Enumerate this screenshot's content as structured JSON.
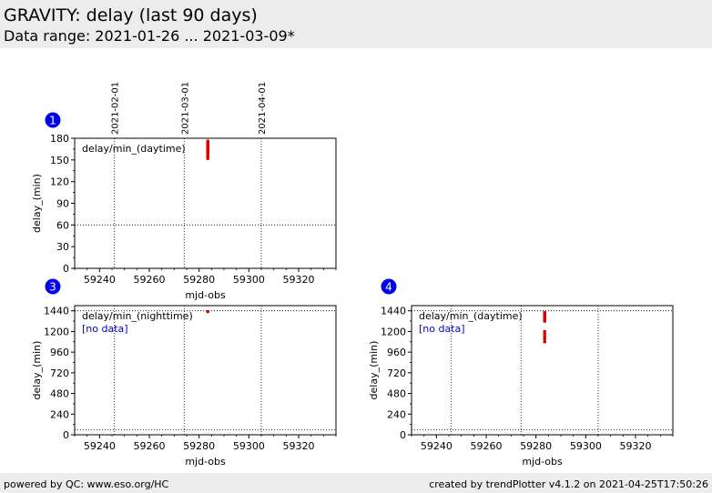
{
  "header": {
    "title": "GRAVITY: delay (last 90 days)",
    "subtitle": "Data range: 2021-01-26 ... 2021-03-09*"
  },
  "footer": {
    "left": "powered by QC: www.eso.org/HC",
    "right": "created by trendPlotter v4.1.2 on 2021-04-25T17:50:26"
  },
  "colors": {
    "data": "#dd0000",
    "badge": "#0000ee",
    "nodata": "#0000cc",
    "background": "#ececec"
  },
  "chart_data": [
    {
      "id": "1",
      "type": "scatter",
      "label": "delay/min_(daytime)",
      "no_data": "",
      "xlabel": "mjd-obs",
      "ylabel": "delay_(min)",
      "xlim": [
        59230,
        59335
      ],
      "ylim": [
        0,
        180
      ],
      "xticks": [
        "59240",
        "59260",
        "59280",
        "59300",
        "59320"
      ],
      "yticks": [
        "0",
        "30",
        "60",
        "90",
        "120",
        "150",
        "180"
      ],
      "date_markers": [
        {
          "mjd": 59246,
          "label": "2021-02-01"
        },
        {
          "mjd": 59274,
          "label": "2021-03-01"
        },
        {
          "mjd": 59305,
          "label": "2021-04-01"
        }
      ],
      "hline": 60,
      "show_date_labels": true,
      "x": [
        59283.5,
        59283.5,
        59283.5,
        59283.5,
        59283.5,
        59283.5,
        59283.5,
        59283.5,
        59283.5,
        59283.5,
        59283.5,
        59283.5,
        59283.5,
        59283.5,
        59283.5,
        59283.5,
        59283.5,
        59283.5,
        59283.5,
        59283.5
      ],
      "y": [
        152,
        155,
        158,
        160,
        162,
        164,
        165,
        166,
        167,
        168,
        169,
        170,
        170,
        171,
        171,
        172,
        173,
        174,
        175,
        176
      ]
    },
    {
      "id": "3",
      "type": "scatter",
      "label": "delay/min_(nighttime)",
      "no_data": "[no data]",
      "xlabel": "mjd-obs",
      "ylabel": "delay_(min)",
      "xlim": [
        59230,
        59335
      ],
      "ylim": [
        0,
        1500
      ],
      "xticks": [
        "59240",
        "59260",
        "59280",
        "59300",
        "59320"
      ],
      "yticks": [
        "0",
        "240",
        "480",
        "720",
        "960",
        "1200",
        "1440"
      ],
      "date_markers": [
        {
          "mjd": 59246,
          "label": "2021-02-01"
        },
        {
          "mjd": 59274,
          "label": "2021-03-01"
        },
        {
          "mjd": 59305,
          "label": "2021-04-01"
        }
      ],
      "hlines": [
        60,
        1440
      ],
      "show_date_labels": false,
      "x": [
        59283.5
      ],
      "y": [
        1430
      ]
    },
    {
      "id": "4",
      "type": "scatter",
      "label": "delay/min_(daytime)",
      "no_data": "[no data]",
      "xlabel": "mjd-obs",
      "ylabel": "delay_(min)",
      "xlim": [
        59230,
        59335
      ],
      "ylim": [
        0,
        1500
      ],
      "xticks": [
        "59240",
        "59260",
        "59280",
        "59300",
        "59320"
      ],
      "yticks": [
        "0",
        "240",
        "480",
        "720",
        "960",
        "1200",
        "1440"
      ],
      "date_markers": [
        {
          "mjd": 59246,
          "label": "2021-02-01"
        },
        {
          "mjd": 59274,
          "label": "2021-03-01"
        },
        {
          "mjd": 59305,
          "label": "2021-04-01"
        }
      ],
      "hlines": [
        60,
        1440
      ],
      "show_date_labels": false,
      "x": [
        59283.5,
        59283.5,
        59283.5,
        59283.5,
        59283.5,
        59283.5,
        59283.5,
        59283.5,
        59283.5,
        59283.5,
        59283.5
      ],
      "y": [
        1080,
        1110,
        1140,
        1170,
        1200,
        1320,
        1340,
        1360,
        1380,
        1400,
        1420
      ]
    }
  ]
}
